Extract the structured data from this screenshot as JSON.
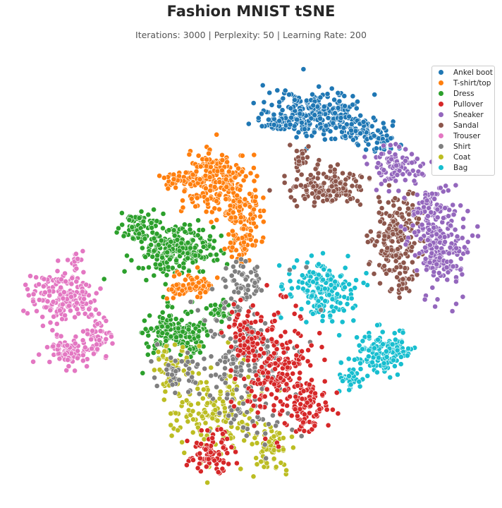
{
  "chart_data": {
    "type": "scatter",
    "title": "Fashion MNIST tSNE",
    "subtitle": "Iterations: 3000 | Perplexity: 50 | Learning Rate: 200",
    "xlabel": "",
    "ylabel": "",
    "grid": false,
    "axes_visible": false,
    "legend_position": "top-right",
    "series": [
      {
        "name": "Ankel boot",
        "color": "#1f77b4"
      },
      {
        "name": "T-shirt/top",
        "color": "#ff7f0e"
      },
      {
        "name": "Dress",
        "color": "#2ca02c"
      },
      {
        "name": "Pullover",
        "color": "#d62728"
      },
      {
        "name": "Sneaker",
        "color": "#9467bd"
      },
      {
        "name": "Sandal",
        "color": "#8c564b"
      },
      {
        "name": "Trouser",
        "color": "#e377c2"
      },
      {
        "name": "Shirt",
        "color": "#7f7f7f"
      },
      {
        "name": "Coat",
        "color": "#bcbd22"
      },
      {
        "name": "Bag",
        "color": "#17becf"
      }
    ]
  }
}
